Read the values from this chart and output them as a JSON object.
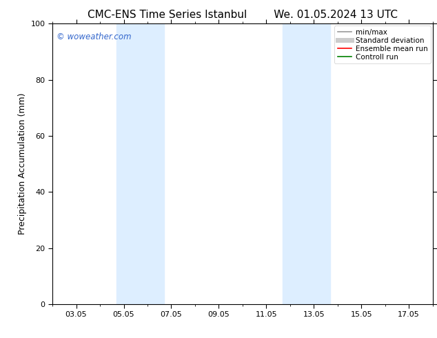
{
  "title_left": "CMC-ENS Time Series Istanbul",
  "title_right": "We. 01.05.2024 13 UTC",
  "ylabel": "Precipitation Accumulation (mm)",
  "ylim": [
    0,
    100
  ],
  "yticks": [
    0,
    20,
    40,
    60,
    80,
    100
  ],
  "xtick_labels": [
    "03.05",
    "05.05",
    "07.05",
    "09.05",
    "11.05",
    "13.05",
    "15.05",
    "17.05"
  ],
  "xtick_positions": [
    2,
    4,
    6,
    8,
    10,
    12,
    14,
    16
  ],
  "xlim": [
    1,
    17
  ],
  "shaded_bands": [
    {
      "x_start": 3.7,
      "x_end": 5.7,
      "color": "#ddeeff"
    },
    {
      "x_start": 10.7,
      "x_end": 12.7,
      "color": "#ddeeff"
    }
  ],
  "watermark_text": "© woweather.com",
  "watermark_color": "#3366cc",
  "background_color": "#ffffff",
  "legend_items": [
    {
      "label": "min/max",
      "color": "#999999",
      "lw": 1.2
    },
    {
      "label": "Standard deviation",
      "color": "#cccccc",
      "lw": 5
    },
    {
      "label": "Ensemble mean run",
      "color": "#ff0000",
      "lw": 1.2
    },
    {
      "label": "Controll run",
      "color": "#008000",
      "lw": 1.2
    }
  ],
  "title_fontsize": 11,
  "tick_fontsize": 8,
  "label_fontsize": 9,
  "legend_fontsize": 7.5
}
